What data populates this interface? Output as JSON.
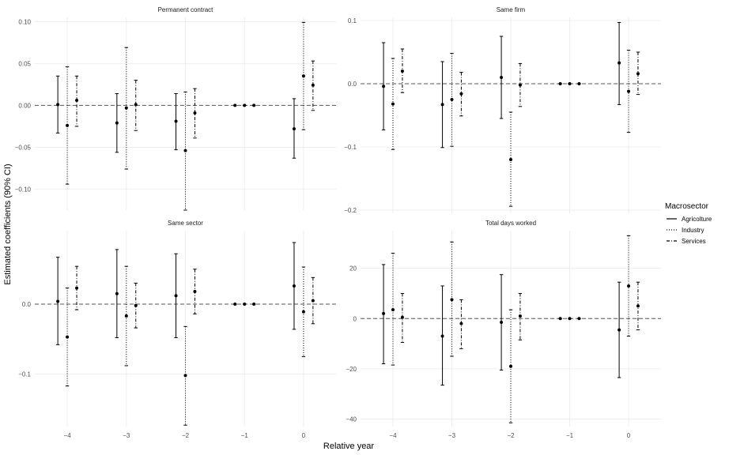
{
  "chart_data": {
    "type": "errorbar",
    "ylabel": "Estimated coefficients (90% CI)",
    "xlabel": "Relative year",
    "legend": {
      "title": "Macrosector",
      "position": "right",
      "entries": [
        {
          "name": "Agricolture",
          "linestyle": "solid"
        },
        {
          "name": "Industry",
          "linestyle": "dotted"
        },
        {
          "name": "Services",
          "linestyle": "dashdot"
        }
      ]
    },
    "x_ticks": [
      -4,
      -3,
      -2,
      -1,
      0
    ],
    "x_tick_labels": [
      "−4",
      "−3",
      "−2",
      "−1",
      "0"
    ],
    "panels": [
      {
        "title": "Permanent contract",
        "ylim": [
          -0.125,
          0.105
        ],
        "y_ticks": [
          -0.1,
          -0.05,
          0,
          0.05,
          0.1
        ],
        "y_tick_labels": [
          "−0.10",
          "−0.05",
          "0.00",
          "0.05",
          "0.10"
        ],
        "series": [
          {
            "name": "Agricolture",
            "x": [
              -4,
              -3,
              -2,
              -1,
              0
            ],
            "estimate": [
              0.001,
              -0.021,
              -0.019,
              0.0,
              -0.028
            ],
            "lower": [
              -0.033,
              -0.056,
              -0.053,
              0.0,
              -0.063
            ],
            "upper": [
              0.035,
              0.014,
              0.014,
              0.0,
              0.008
            ]
          },
          {
            "name": "Industry",
            "x": [
              -4,
              -3,
              -2,
              -1,
              0
            ],
            "estimate": [
              -0.024,
              -0.003,
              -0.054,
              0.0,
              0.035
            ],
            "lower": [
              -0.094,
              -0.076,
              -0.125,
              0.0,
              -0.029
            ],
            "upper": [
              0.046,
              0.069,
              0.016,
              0.0,
              0.099
            ]
          },
          {
            "name": "Services",
            "x": [
              -4,
              -3,
              -2,
              -1,
              0
            ],
            "estimate": [
              0.006,
              0.001,
              -0.009,
              0.0,
              0.024
            ],
            "lower": [
              -0.025,
              -0.03,
              -0.039,
              0.0,
              -0.006
            ],
            "upper": [
              0.035,
              0.03,
              0.02,
              0.0,
              0.053
            ]
          }
        ]
      },
      {
        "title": "Same firm",
        "ylim": [
          -0.205,
          0.105
        ],
        "y_ticks": [
          -0.2,
          -0.1,
          0,
          0.1
        ],
        "y_tick_labels": [
          "−0.2",
          "−0.1",
          "0.0",
          "0.1"
        ],
        "series": [
          {
            "name": "Agricolture",
            "x": [
              -4,
              -3,
              -2,
              -1,
              0
            ],
            "estimate": [
              -0.004,
              -0.033,
              0.01,
              0.0,
              0.033
            ],
            "lower": [
              -0.073,
              -0.101,
              -0.055,
              0.0,
              -0.033
            ],
            "upper": [
              0.065,
              0.035,
              0.075,
              0.0,
              0.097
            ]
          },
          {
            "name": "Industry",
            "x": [
              -4,
              -3,
              -2,
              -1,
              0
            ],
            "estimate": [
              -0.032,
              -0.025,
              -0.12,
              0.0,
              -0.012
            ],
            "lower": [
              -0.104,
              -0.099,
              -0.194,
              0.0,
              -0.077
            ],
            "upper": [
              0.04,
              0.048,
              -0.045,
              0.0,
              0.053
            ]
          },
          {
            "name": "Services",
            "x": [
              -4,
              -3,
              -2,
              -1,
              0
            ],
            "estimate": [
              0.02,
              -0.016,
              -0.002,
              0.0,
              0.016
            ],
            "lower": [
              -0.014,
              -0.051,
              -0.036,
              0.0,
              -0.017
            ],
            "upper": [
              0.055,
              0.018,
              0.032,
              0.0,
              0.05
            ]
          }
        ]
      },
      {
        "title": "Same sector",
        "ylim": [
          -0.175,
          0.105
        ],
        "y_ticks": [
          -0.1,
          0
        ],
        "y_tick_labels": [
          "−0.1",
          "0.0"
        ],
        "series": [
          {
            "name": "Agricolture",
            "x": [
              -4,
              -3,
              -2,
              -1,
              0
            ],
            "estimate": [
              0.004,
              0.015,
              0.012,
              0.0,
              0.026
            ],
            "lower": [
              -0.058,
              -0.048,
              -0.048,
              0.0,
              -0.036
            ],
            "upper": [
              0.067,
              0.078,
              0.072,
              0.0,
              0.088
            ]
          },
          {
            "name": "Industry",
            "x": [
              -4,
              -3,
              -2,
              -1,
              0
            ],
            "estimate": [
              -0.047,
              -0.017,
              -0.102,
              0.0,
              -0.011
            ],
            "lower": [
              -0.117,
              -0.088,
              -0.173,
              0.0,
              -0.075
            ],
            "upper": [
              0.023,
              0.054,
              -0.032,
              0.0,
              0.053
            ]
          },
          {
            "name": "Services",
            "x": [
              -4,
              -3,
              -2,
              -1,
              0
            ],
            "estimate": [
              0.023,
              -0.002,
              0.018,
              0.0,
              0.005
            ],
            "lower": [
              -0.008,
              -0.034,
              -0.014,
              0.0,
              -0.028
            ],
            "upper": [
              0.054,
              0.03,
              0.05,
              0.0,
              0.038
            ]
          }
        ]
      },
      {
        "title": "Total days worked",
        "ylim": [
          -43,
          35
        ],
        "y_ticks": [
          -40,
          -20,
          0,
          20
        ],
        "y_tick_labels": [
          "−40",
          "−20",
          "0",
          "20"
        ],
        "series": [
          {
            "name": "Agricolture",
            "x": [
              -4,
              -3,
              -2,
              -1,
              0
            ],
            "estimate": [
              2.0,
              -7.0,
              -1.5,
              0.0,
              -4.5
            ],
            "lower": [
              -18.0,
              -26.5,
              -20.5,
              0.0,
              -23.5
            ],
            "upper": [
              21.5,
              13.0,
              17.5,
              0.0,
              14.5
            ]
          },
          {
            "name": "Industry",
            "x": [
              -4,
              -3,
              -2,
              -1,
              0
            ],
            "estimate": [
              3.5,
              7.5,
              -19.0,
              0.0,
              13.0
            ],
            "lower": [
              -18.5,
              -15.0,
              -41.5,
              0.0,
              -7.0
            ],
            "upper": [
              26.0,
              30.5,
              3.5,
              0.0,
              33.0
            ]
          },
          {
            "name": "Services",
            "x": [
              -4,
              -3,
              -2,
              -1,
              0
            ],
            "estimate": [
              0.5,
              -2.0,
              1.0,
              0.0,
              5.0
            ],
            "lower": [
              -9.5,
              -12.0,
              -8.5,
              0.0,
              -4.5
            ],
            "upper": [
              10.0,
              7.5,
              10.0,
              0.0,
              14.5
            ]
          }
        ]
      }
    ]
  }
}
